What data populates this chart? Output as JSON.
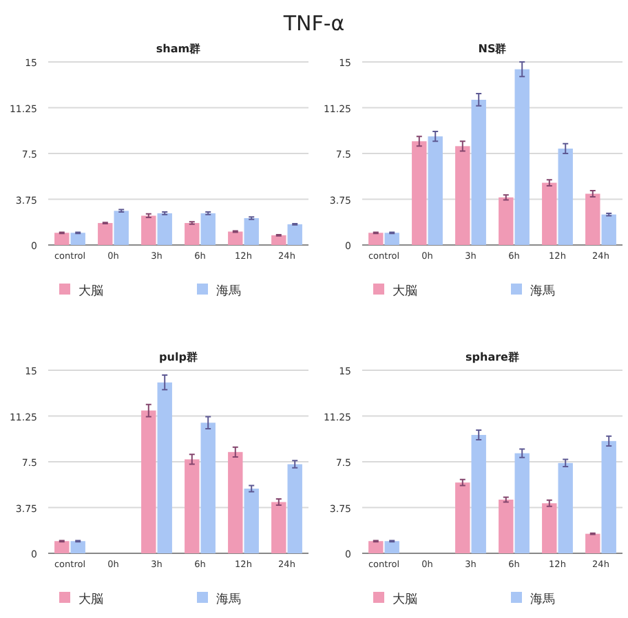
{
  "chart_data": [
    {
      "type": "bar",
      "title": "sham群",
      "annotations": [
        "TNF-α"
      ],
      "categories": [
        "control",
        "0h",
        "3h",
        "6h",
        "12h",
        "24h"
      ],
      "ylim": [
        0,
        15
      ],
      "yticks": [
        0,
        3.75,
        7.5,
        11.25,
        15
      ],
      "grid": "y",
      "legend": "bottom",
      "series": [
        {
          "name": "大脳",
          "color": "#f09ab5",
          "values": [
            1.0,
            1.8,
            2.4,
            1.8,
            1.1,
            0.8
          ],
          "errors": [
            0.05,
            0.05,
            0.15,
            0.1,
            0.05,
            0.05
          ]
        },
        {
          "name": "海馬",
          "color": "#a9c6f5",
          "values": [
            1.0,
            2.8,
            2.6,
            2.6,
            2.2,
            1.7
          ],
          "errors": [
            0.05,
            0.1,
            0.1,
            0.1,
            0.1,
            0.05
          ]
        }
      ]
    },
    {
      "type": "bar",
      "title": "NS群",
      "categories": [
        "control",
        "0h",
        "3h",
        "6h",
        "12h",
        "24h"
      ],
      "ylim": [
        0,
        15
      ],
      "yticks": [
        0,
        3.75,
        7.5,
        11.25,
        15
      ],
      "grid": "y",
      "legend": "bottom",
      "series": [
        {
          "name": "大脳",
          "color": "#f09ab5",
          "values": [
            1.0,
            8.5,
            8.1,
            3.9,
            5.1,
            4.2
          ],
          "errors": [
            0.05,
            0.4,
            0.4,
            0.2,
            0.25,
            0.25
          ]
        },
        {
          "name": "海馬",
          "color": "#a9c6f5",
          "values": [
            1.0,
            8.9,
            11.9,
            14.4,
            7.9,
            2.5
          ],
          "errors": [
            0.05,
            0.4,
            0.5,
            0.6,
            0.4,
            0.1
          ]
        }
      ]
    },
    {
      "type": "bar",
      "title": "pulp群",
      "categories": [
        "control",
        "0h",
        "3h",
        "6h",
        "12h",
        "24h"
      ],
      "ylim": [
        0,
        15
      ],
      "yticks": [
        0,
        3.75,
        7.5,
        11.25,
        15
      ],
      "grid": "y",
      "legend": "bottom",
      "series": [
        {
          "name": "大脳",
          "color": "#f09ab5",
          "values": [
            1.0,
            null,
            11.7,
            7.7,
            8.3,
            4.2
          ],
          "errors": [
            0.05,
            null,
            0.5,
            0.4,
            0.4,
            0.25
          ]
        },
        {
          "name": "海馬",
          "color": "#a9c6f5",
          "values": [
            1.0,
            null,
            14.0,
            10.7,
            5.3,
            7.3
          ],
          "errors": [
            0.05,
            null,
            0.6,
            0.5,
            0.25,
            0.3
          ]
        }
      ]
    },
    {
      "type": "bar",
      "title": "sphare群",
      "categories": [
        "control",
        "0h",
        "3h",
        "6h",
        "12h",
        "24h"
      ],
      "ylim": [
        0,
        15
      ],
      "yticks": [
        0,
        3.75,
        7.5,
        11.25,
        15
      ],
      "grid": "y",
      "legend": "bottom",
      "series": [
        {
          "name": "大脳",
          "color": "#f09ab5",
          "values": [
            1.0,
            null,
            5.8,
            4.4,
            4.1,
            1.6
          ],
          "errors": [
            0.05,
            null,
            0.25,
            0.2,
            0.25,
            0.05
          ]
        },
        {
          "name": "海馬",
          "color": "#a9c6f5",
          "values": [
            1.0,
            null,
            9.7,
            8.2,
            7.4,
            9.2
          ],
          "errors": [
            0.05,
            null,
            0.4,
            0.35,
            0.3,
            0.4
          ]
        }
      ]
    }
  ]
}
